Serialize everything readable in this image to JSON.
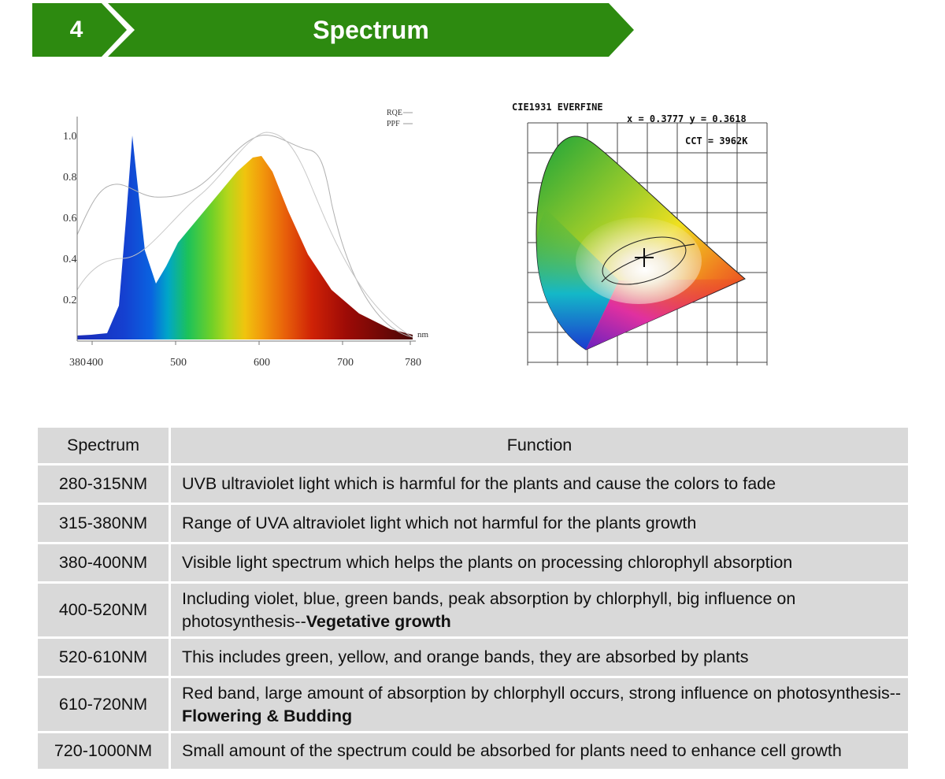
{
  "header": {
    "number": "4",
    "title": "Spectrum"
  },
  "spectrum_chart": {
    "legend": [
      "RQE",
      "PPF"
    ],
    "y_ticks": [
      "1.0",
      "0.8",
      "0.6",
      "0.4",
      "0.2"
    ],
    "x_ticks": [
      "380",
      "400",
      "500",
      "600",
      "700",
      "780"
    ],
    "unit": "nm"
  },
  "cie_chart": {
    "title": "CIE1931  EVERFINE",
    "coords": "x = 0.3777 y = 0.3618",
    "cct": "CCT = 3962K"
  },
  "table": {
    "headers": [
      "Spectrum",
      "Function"
    ],
    "rows": [
      {
        "range": "280-315NM",
        "text": "UVB ultraviolet light which is harmful for the plants and cause the colors to fade",
        "bold": ""
      },
      {
        "range": "315-380NM",
        "text": "Range of UVA altraviolet light which not harmful for the plants growth",
        "bold": ""
      },
      {
        "range": "380-400NM",
        "text": "Visible light spectrum which helps the plants on processing chlorophyll absorption",
        "bold": ""
      },
      {
        "range": "400-520NM",
        "text": " Including violet, blue, green bands, peak absorption by chlorphyll, big influence on photosynthesis--",
        "bold": "Vegetative growth"
      },
      {
        "range": "520-610NM",
        "text": "This includes green, yellow, and orange bands, they are absorbed by plants",
        "bold": ""
      },
      {
        "range": "610-720NM",
        "text": "Red band, large amount of absorption by chlorphyll occurs, strong influence on photosynthesis--",
        "bold": "Flowering & Budding"
      },
      {
        "range": "720-1000NM",
        "text": "Small amount of the spectrum could be absorbed for plants need to enhance cell growth",
        "bold": ""
      }
    ]
  }
}
